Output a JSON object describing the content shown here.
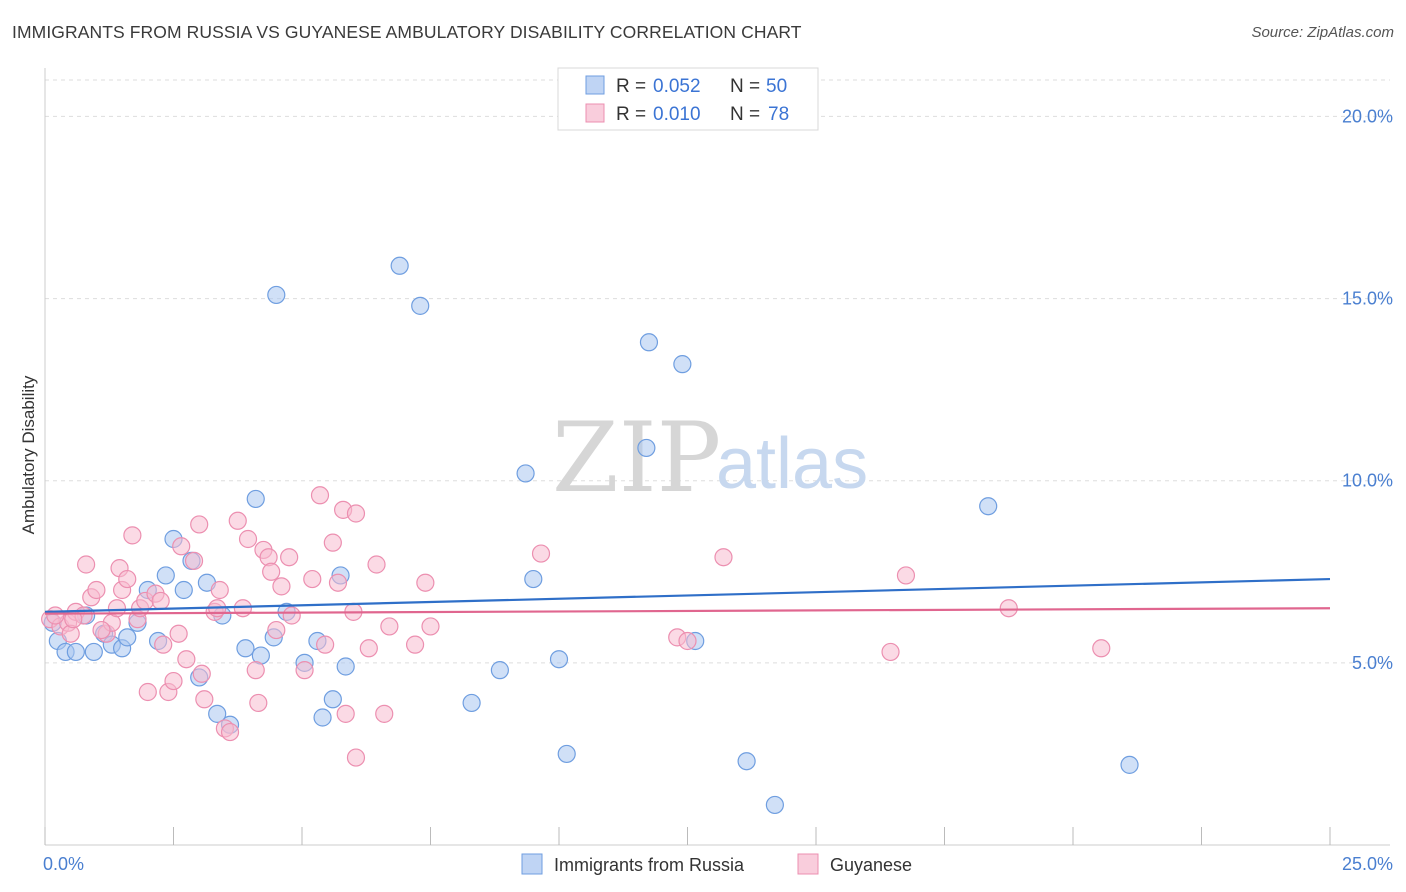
{
  "title": "IMMIGRANTS FROM RUSSIA VS GUYANESE AMBULATORY DISABILITY CORRELATION CHART",
  "source": "Source: ZipAtlas.com",
  "watermark": {
    "zip": "ZIP",
    "atlas": "atlas"
  },
  "colors": {
    "russia_fill": "#a9c6f0",
    "russia_stroke": "#6f9ee0",
    "russia_line": "#2f6fc8",
    "guyanese_fill": "#f7bcd0",
    "guyanese_stroke": "#ec8fb0",
    "guyanese_line": "#e0668f",
    "grid": "#dddddd",
    "tick_label": "#4a7fd0"
  },
  "legend_top": {
    "rows": [
      {
        "r_label": "R = ",
        "r_value": "0.052",
        "n_label": "N = ",
        "n_value": "50",
        "series": "russia"
      },
      {
        "r_label": "R = ",
        "r_value": "0.010",
        "n_label": "N = ",
        "n_value": "78",
        "series": "guyanese"
      }
    ]
  },
  "chart_data": {
    "type": "scatter",
    "title": "IMMIGRANTS FROM RUSSIA VS GUYANESE AMBULATORY DISABILITY CORRELATION CHART",
    "xlabel": "",
    "ylabel": "Ambulatory Disability",
    "xlim": [
      0,
      25
    ],
    "ylim": [
      0,
      21
    ],
    "x_tick_labels": [
      "0.0%",
      "25.0%"
    ],
    "x_ticks": [
      0,
      2.5,
      5,
      7.5,
      10,
      12.5,
      15,
      17.5,
      20,
      22.5,
      25
    ],
    "y_ticks": [
      5,
      10,
      15,
      20
    ],
    "y_tick_labels": [
      "5.0%",
      "10.0%",
      "15.0%",
      "20.0%"
    ],
    "grid": true,
    "legend_placement": "top-center",
    "series": [
      {
        "name": "Immigrants from Russia",
        "key": "russia",
        "trend": {
          "x": [
            0,
            25
          ],
          "y": [
            6.4,
            7.3
          ]
        },
        "points": [
          [
            0.15,
            6.1
          ],
          [
            0.25,
            5.6
          ],
          [
            0.4,
            5.3
          ],
          [
            0.6,
            5.3
          ],
          [
            0.8,
            6.3
          ],
          [
            0.95,
            5.3
          ],
          [
            1.15,
            5.8
          ],
          [
            1.3,
            5.5
          ],
          [
            1.5,
            5.4
          ],
          [
            1.6,
            5.7
          ],
          [
            1.8,
            6.1
          ],
          [
            2.0,
            7.0
          ],
          [
            2.2,
            5.6
          ],
          [
            2.35,
            7.4
          ],
          [
            2.5,
            8.4
          ],
          [
            2.7,
            7.0
          ],
          [
            2.85,
            7.8
          ],
          [
            3.0,
            4.6
          ],
          [
            3.15,
            7.2
          ],
          [
            3.35,
            3.6
          ],
          [
            3.45,
            6.3
          ],
          [
            3.6,
            3.3
          ],
          [
            3.9,
            5.4
          ],
          [
            4.1,
            9.5
          ],
          [
            4.2,
            5.2
          ],
          [
            4.45,
            5.7
          ],
          [
            4.5,
            15.1
          ],
          [
            4.7,
            6.4
          ],
          [
            5.05,
            5.0
          ],
          [
            5.3,
            5.6
          ],
          [
            5.4,
            3.5
          ],
          [
            5.6,
            4.0
          ],
          [
            5.75,
            7.4
          ],
          [
            5.85,
            4.9
          ],
          [
            6.9,
            15.9
          ],
          [
            7.3,
            14.8
          ],
          [
            8.3,
            3.9
          ],
          [
            8.85,
            4.8
          ],
          [
            9.35,
            10.2
          ],
          [
            9.5,
            7.3
          ],
          [
            10.0,
            5.1
          ],
          [
            10.15,
            2.5
          ],
          [
            11.7,
            10.9
          ],
          [
            11.75,
            13.8
          ],
          [
            12.4,
            13.2
          ],
          [
            12.65,
            5.6
          ],
          [
            13.65,
            2.3
          ],
          [
            14.2,
            1.1
          ],
          [
            18.35,
            9.3
          ],
          [
            21.1,
            2.2
          ]
        ]
      },
      {
        "name": "Guyanese",
        "key": "guyanese",
        "trend": {
          "x": [
            0,
            25
          ],
          "y": [
            6.35,
            6.5
          ]
        },
        "points": [
          [
            0.1,
            6.2
          ],
          [
            0.3,
            6.0
          ],
          [
            0.45,
            6.1
          ],
          [
            0.5,
            5.8
          ],
          [
            0.6,
            6.4
          ],
          [
            0.75,
            6.3
          ],
          [
            0.8,
            7.7
          ],
          [
            0.9,
            6.8
          ],
          [
            1.0,
            7.0
          ],
          [
            1.2,
            5.8
          ],
          [
            1.3,
            6.1
          ],
          [
            1.4,
            6.5
          ],
          [
            1.45,
            7.6
          ],
          [
            1.5,
            7.0
          ],
          [
            1.6,
            7.3
          ],
          [
            1.7,
            8.5
          ],
          [
            1.8,
            6.2
          ],
          [
            1.85,
            6.5
          ],
          [
            1.95,
            6.7
          ],
          [
            2.0,
            4.2
          ],
          [
            2.15,
            6.9
          ],
          [
            2.25,
            6.7
          ],
          [
            2.3,
            5.5
          ],
          [
            2.4,
            4.2
          ],
          [
            2.5,
            4.5
          ],
          [
            2.6,
            5.8
          ],
          [
            2.65,
            8.2
          ],
          [
            2.75,
            5.1
          ],
          [
            2.9,
            7.8
          ],
          [
            3.0,
            8.8
          ],
          [
            3.05,
            4.7
          ],
          [
            3.1,
            4.0
          ],
          [
            3.3,
            6.4
          ],
          [
            3.35,
            6.5
          ],
          [
            3.4,
            7.0
          ],
          [
            3.5,
            3.2
          ],
          [
            3.6,
            3.1
          ],
          [
            3.75,
            8.9
          ],
          [
            3.85,
            6.5
          ],
          [
            3.95,
            8.4
          ],
          [
            4.1,
            4.8
          ],
          [
            4.15,
            3.9
          ],
          [
            4.25,
            8.1
          ],
          [
            4.35,
            7.9
          ],
          [
            4.4,
            7.5
          ],
          [
            4.5,
            5.9
          ],
          [
            4.6,
            7.1
          ],
          [
            4.75,
            7.9
          ],
          [
            4.8,
            6.3
          ],
          [
            5.05,
            4.8
          ],
          [
            5.2,
            7.3
          ],
          [
            5.35,
            9.6
          ],
          [
            5.45,
            5.5
          ],
          [
            5.6,
            8.3
          ],
          [
            5.7,
            7.2
          ],
          [
            5.8,
            9.2
          ],
          [
            5.85,
            3.6
          ],
          [
            6.0,
            6.4
          ],
          [
            6.05,
            2.4
          ],
          [
            6.05,
            9.1
          ],
          [
            6.3,
            5.4
          ],
          [
            6.45,
            7.7
          ],
          [
            6.6,
            3.6
          ],
          [
            6.7,
            6.0
          ],
          [
            7.2,
            5.5
          ],
          [
            7.4,
            7.2
          ],
          [
            7.5,
            6.0
          ],
          [
            9.65,
            8.0
          ],
          [
            12.3,
            5.7
          ],
          [
            12.5,
            5.6
          ],
          [
            13.2,
            7.9
          ],
          [
            16.45,
            5.3
          ],
          [
            16.75,
            7.4
          ],
          [
            18.75,
            6.5
          ],
          [
            20.55,
            5.4
          ],
          [
            0.2,
            6.3
          ],
          [
            0.55,
            6.2
          ],
          [
            1.1,
            5.9
          ]
        ]
      }
    ]
  },
  "legend_bottom": {
    "items": [
      {
        "label": "Immigrants from Russia",
        "series": "russia"
      },
      {
        "label": "Guyanese",
        "series": "guyanese"
      }
    ]
  }
}
